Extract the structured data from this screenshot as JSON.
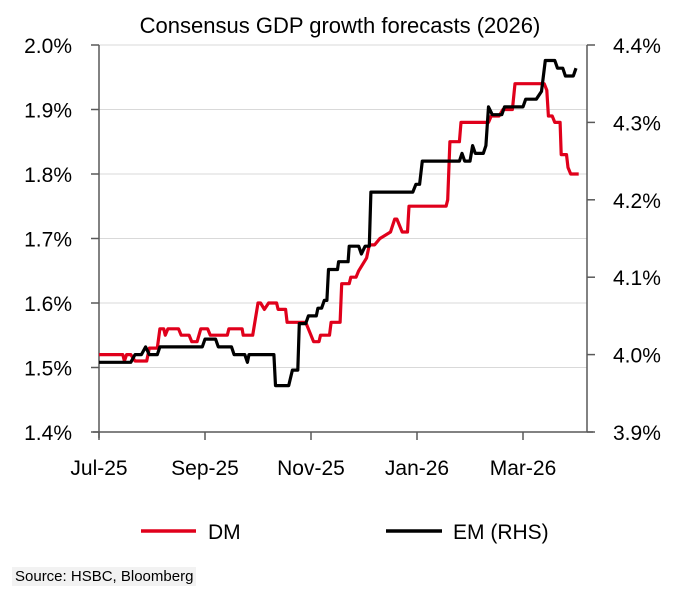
{
  "chart_data": {
    "type": "line",
    "title": "Consensus GDP growth forecasts (2026)",
    "xlabel": "",
    "ylabel": "",
    "x_tick_labels": [
      "Jul-25",
      "Sep-25",
      "Nov-25",
      "Jan-26",
      "Mar-26"
    ],
    "x_tick_months": [
      0,
      2,
      4,
      6,
      8
    ],
    "x_range_months": [
      0,
      9.5
    ],
    "left_axis": {
      "ylim": [
        1.4,
        2.0
      ],
      "ticks": [
        1.4,
        1.5,
        1.6,
        1.7,
        1.8,
        1.9,
        2.0
      ],
      "tick_labels": [
        "1.4%",
        "1.5%",
        "1.6%",
        "1.7%",
        "1.8%",
        "1.9%",
        "2.0%"
      ]
    },
    "right_axis": {
      "ylim": [
        3.9,
        4.4
      ],
      "ticks": [
        3.9,
        4.0,
        4.1,
        4.2,
        4.3,
        4.4
      ],
      "tick_labels": [
        "3.9%",
        "4.0%",
        "4.1%",
        "4.2%",
        "4.3%",
        "4.4%"
      ]
    },
    "grid": true,
    "legend_position": "bottom",
    "series": [
      {
        "name": "DM",
        "axis": "left",
        "color": "#e0001b",
        "points": [
          [
            0.0,
            1.52
          ],
          [
            0.45,
            1.52
          ],
          [
            0.48,
            1.51
          ],
          [
            0.52,
            1.52
          ],
          [
            0.6,
            1.52
          ],
          [
            0.68,
            1.51
          ],
          [
            0.9,
            1.51
          ],
          [
            0.95,
            1.53
          ],
          [
            1.1,
            1.53
          ],
          [
            1.15,
            1.56
          ],
          [
            1.22,
            1.56
          ],
          [
            1.25,
            1.55
          ],
          [
            1.3,
            1.56
          ],
          [
            1.5,
            1.56
          ],
          [
            1.55,
            1.55
          ],
          [
            1.7,
            1.55
          ],
          [
            1.75,
            1.54
          ],
          [
            1.85,
            1.54
          ],
          [
            1.92,
            1.56
          ],
          [
            2.05,
            1.56
          ],
          [
            2.1,
            1.55
          ],
          [
            2.42,
            1.55
          ],
          [
            2.45,
            1.56
          ],
          [
            2.7,
            1.56
          ],
          [
            2.72,
            1.55
          ],
          [
            2.9,
            1.55
          ],
          [
            3.0,
            1.6
          ],
          [
            3.05,
            1.6
          ],
          [
            3.12,
            1.59
          ],
          [
            3.2,
            1.6
          ],
          [
            3.35,
            1.6
          ],
          [
            3.38,
            1.59
          ],
          [
            3.52,
            1.59
          ],
          [
            3.55,
            1.57
          ],
          [
            3.9,
            1.57
          ],
          [
            4.05,
            1.54
          ],
          [
            4.15,
            1.54
          ],
          [
            4.18,
            1.55
          ],
          [
            4.35,
            1.55
          ],
          [
            4.38,
            1.57
          ],
          [
            4.55,
            1.57
          ],
          [
            4.58,
            1.63
          ],
          [
            4.72,
            1.63
          ],
          [
            4.75,
            1.64
          ],
          [
            4.85,
            1.64
          ],
          [
            4.9,
            1.65
          ],
          [
            5.05,
            1.67
          ],
          [
            5.1,
            1.69
          ],
          [
            5.2,
            1.69
          ],
          [
            5.3,
            1.7
          ],
          [
            5.5,
            1.71
          ],
          [
            5.58,
            1.73
          ],
          [
            5.62,
            1.73
          ],
          [
            5.72,
            1.71
          ],
          [
            5.82,
            1.71
          ],
          [
            5.85,
            1.75
          ],
          [
            6.55,
            1.75
          ],
          [
            6.58,
            1.76
          ],
          [
            6.62,
            1.85
          ],
          [
            6.8,
            1.85
          ],
          [
            6.83,
            1.88
          ],
          [
            7.0,
            1.88
          ],
          [
            7.02,
            1.88
          ],
          [
            7.35,
            1.88
          ],
          [
            7.4,
            1.89
          ],
          [
            7.55,
            1.89
          ],
          [
            7.62,
            1.9
          ],
          [
            7.8,
            1.9
          ],
          [
            7.85,
            1.94
          ],
          [
            8.4,
            1.94
          ],
          [
            8.45,
            1.93
          ],
          [
            8.48,
            1.89
          ],
          [
            8.55,
            1.89
          ],
          [
            8.6,
            1.88
          ],
          [
            8.7,
            1.88
          ],
          [
            8.72,
            1.83
          ],
          [
            8.82,
            1.83
          ],
          [
            8.85,
            1.81
          ],
          [
            8.9,
            1.8
          ],
          [
            9.05,
            1.8
          ]
        ]
      },
      {
        "name": "EM (RHS)",
        "axis": "right",
        "color": "#000000",
        "points": [
          [
            0.0,
            3.99
          ],
          [
            0.6,
            3.99
          ],
          [
            0.68,
            4.0
          ],
          [
            0.8,
            4.0
          ],
          [
            0.88,
            4.01
          ],
          [
            0.95,
            4.0
          ],
          [
            1.1,
            4.0
          ],
          [
            1.15,
            4.01
          ],
          [
            1.95,
            4.01
          ],
          [
            2.0,
            4.02
          ],
          [
            2.2,
            4.02
          ],
          [
            2.25,
            4.01
          ],
          [
            2.5,
            4.01
          ],
          [
            2.55,
            4.0
          ],
          [
            2.75,
            4.0
          ],
          [
            2.8,
            3.99
          ],
          [
            2.83,
            4.0
          ],
          [
            3.3,
            4.0
          ],
          [
            3.33,
            3.96
          ],
          [
            3.58,
            3.96
          ],
          [
            3.65,
            3.98
          ],
          [
            3.75,
            3.98
          ],
          [
            3.78,
            4.04
          ],
          [
            3.9,
            4.04
          ],
          [
            3.95,
            4.05
          ],
          [
            4.1,
            4.05
          ],
          [
            4.13,
            4.06
          ],
          [
            4.2,
            4.06
          ],
          [
            4.25,
            4.07
          ],
          [
            4.3,
            4.07
          ],
          [
            4.33,
            4.11
          ],
          [
            4.5,
            4.11
          ],
          [
            4.52,
            4.12
          ],
          [
            4.7,
            4.12
          ],
          [
            4.72,
            4.14
          ],
          [
            4.9,
            4.14
          ],
          [
            4.95,
            4.13
          ],
          [
            5.02,
            4.14
          ],
          [
            5.1,
            4.14
          ],
          [
            5.13,
            4.21
          ],
          [
            5.92,
            4.21
          ],
          [
            5.98,
            4.22
          ],
          [
            6.05,
            4.22
          ],
          [
            6.1,
            4.25
          ],
          [
            6.8,
            4.25
          ],
          [
            6.85,
            4.26
          ],
          [
            6.9,
            4.25
          ],
          [
            7.0,
            4.25
          ],
          [
            7.05,
            4.27
          ],
          [
            7.1,
            4.26
          ],
          [
            7.25,
            4.26
          ],
          [
            7.3,
            4.27
          ],
          [
            7.35,
            4.32
          ],
          [
            7.42,
            4.31
          ],
          [
            7.6,
            4.31
          ],
          [
            7.65,
            4.32
          ],
          [
            8.0,
            4.32
          ],
          [
            8.05,
            4.33
          ],
          [
            8.25,
            4.33
          ],
          [
            8.35,
            4.34
          ],
          [
            8.42,
            4.38
          ],
          [
            8.6,
            4.38
          ],
          [
            8.65,
            4.37
          ],
          [
            8.75,
            4.37
          ],
          [
            8.8,
            4.36
          ],
          [
            8.95,
            4.36
          ],
          [
            9.0,
            4.37
          ]
        ]
      }
    ]
  },
  "legend": {
    "items": [
      {
        "label": "DM",
        "color": "#e0001b"
      },
      {
        "label": "EM (RHS)",
        "color": "#000000"
      }
    ]
  },
  "source": "Source: HSBC, Bloomberg"
}
